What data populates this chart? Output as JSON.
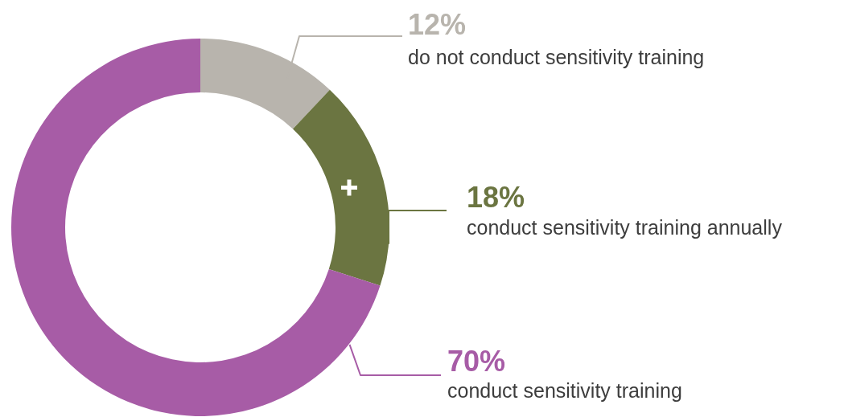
{
  "chart_data": {
    "type": "donut",
    "categories": [
      "do not conduct sensitivity training",
      "conduct sensitivity training annually",
      "conduct sensitivity training"
    ],
    "values": [
      12,
      18,
      70
    ],
    "value_labels": [
      "12%",
      "18%",
      "70%"
    ],
    "colors": [
      "#b8b4ad",
      "#6b7541",
      "#a75ca6"
    ]
  }
}
